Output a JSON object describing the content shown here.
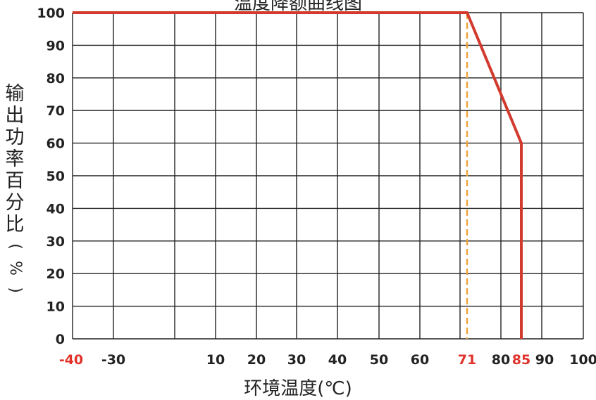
{
  "chart_data": {
    "type": "line",
    "title": "温度降额曲线图",
    "xlabel": "环境温度(℃)",
    "ylabel": "输出功率百分比(%)",
    "x_ticks": [
      -40,
      -30,
      10,
      20,
      30,
      40,
      50,
      60,
      71,
      80,
      85,
      90,
      100
    ],
    "x_tick_labels": [
      "-40",
      "-30",
      "10",
      "20",
      "30",
      "40",
      "50",
      "60",
      "71",
      "80",
      "85",
      "90",
      "100"
    ],
    "highlight_ticks": [
      "-40",
      "71",
      "85"
    ],
    "y_ticks": [
      0,
      10,
      20,
      30,
      40,
      50,
      60,
      70,
      80,
      90,
      100
    ],
    "y_tick_labels": [
      "0",
      "10",
      "20",
      "30",
      "40",
      "50",
      "60",
      "70",
      "80",
      "90",
      "100"
    ],
    "ylim": [
      0,
      100
    ],
    "grid": true,
    "series": [
      {
        "x": [
          -40,
          71,
          85,
          85
        ],
        "y": [
          100,
          100,
          60,
          0
        ],
        "color": "#d23a2e"
      }
    ],
    "reference_lines": [
      {
        "x": 71,
        "style": "dashed",
        "color": "#f0a33a"
      }
    ],
    "colors": {
      "curve": "#d23a2e",
      "highlight": "#e0322b",
      "reference": "#f0a33a",
      "grid": "#222222",
      "text": "#222222"
    }
  }
}
